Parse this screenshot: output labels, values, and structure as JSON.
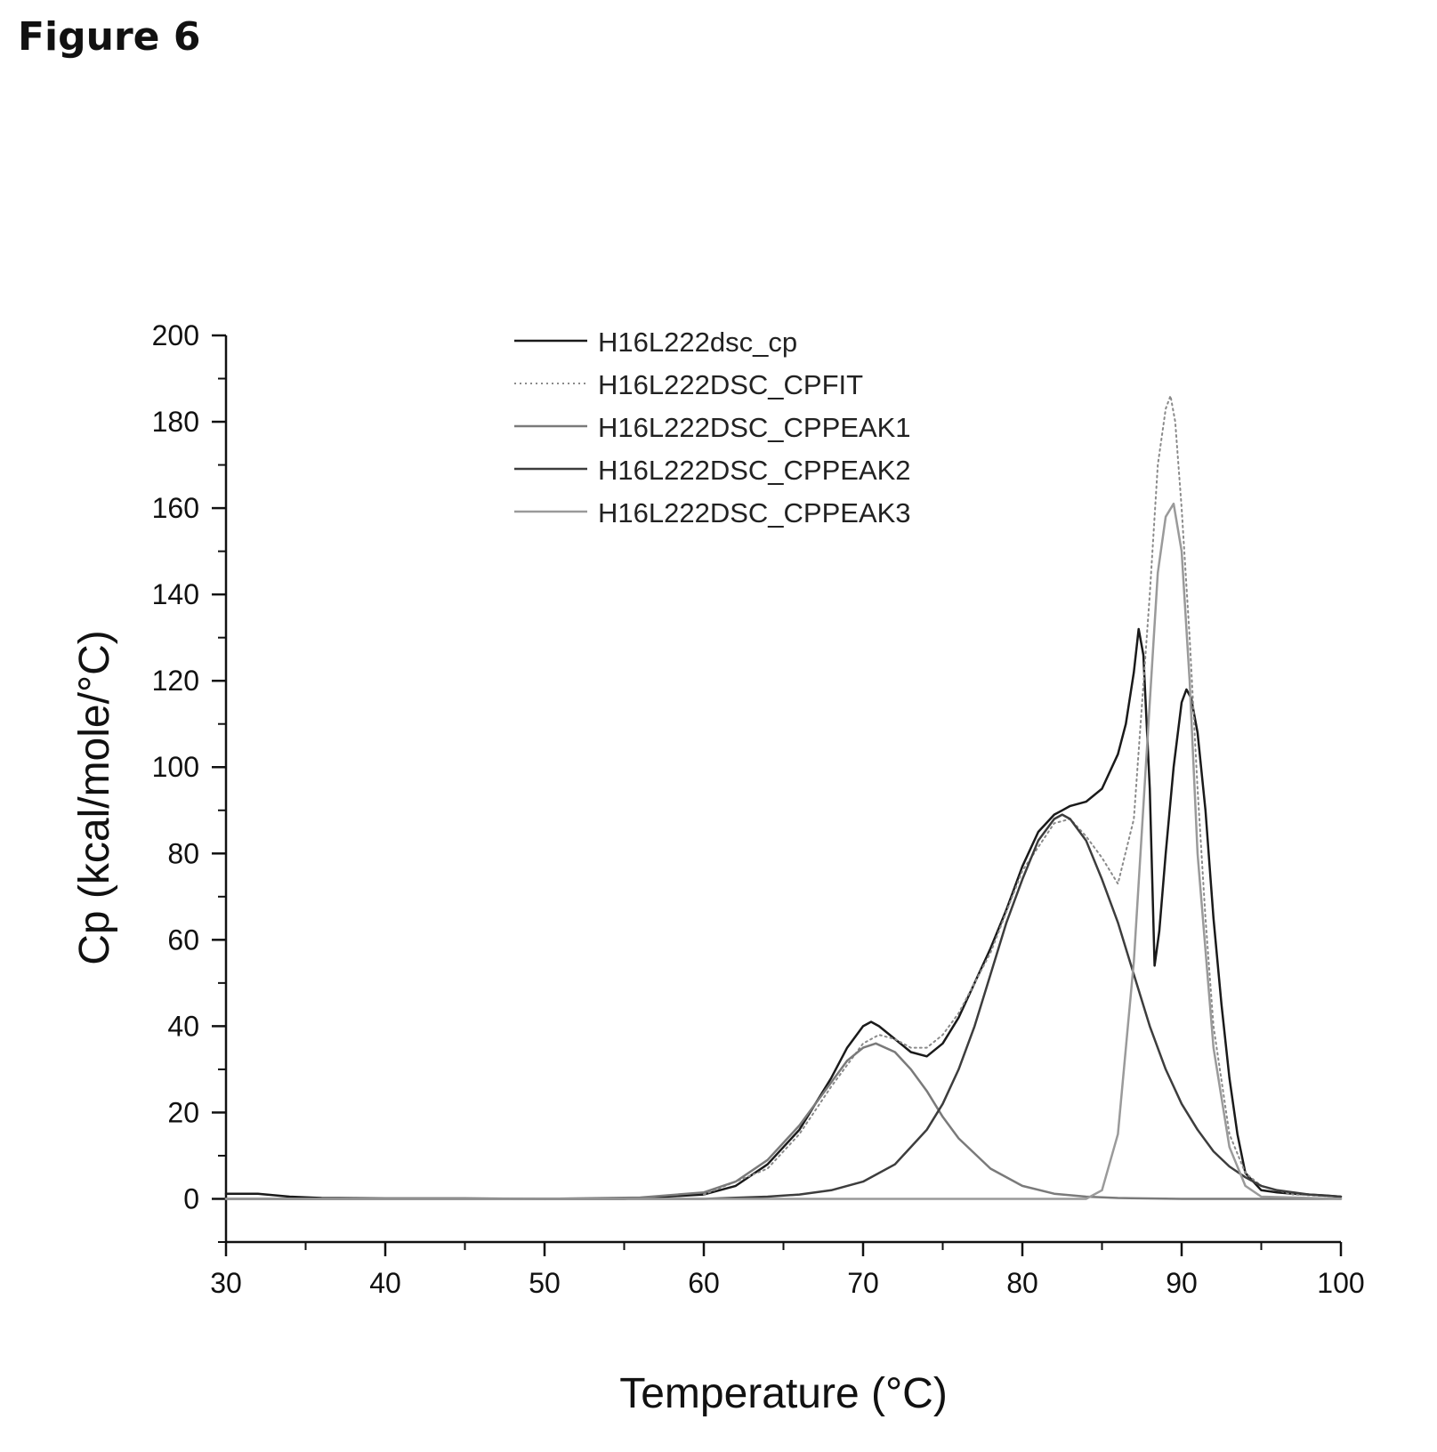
{
  "figure_title": "Figure 6",
  "chart_data": {
    "type": "line",
    "xlabel": "Temperature (°C)",
    "ylabel": "Cp (kcal/mole/°C)",
    "xlim": [
      30,
      100
    ],
    "ylim": [
      -10,
      200
    ],
    "xticks": [
      30,
      40,
      50,
      60,
      70,
      80,
      90,
      100
    ],
    "yticks": [
      0,
      20,
      40,
      60,
      80,
      100,
      120,
      140,
      160,
      180,
      200
    ],
    "grid": false,
    "legend_position": "top-center",
    "series": [
      {
        "name": "H16L222dsc_cp",
        "color": "#1a1a1a",
        "style": "solid",
        "x": [
          30,
          32,
          34,
          36,
          40,
          45,
          50,
          55,
          60,
          62,
          64,
          66,
          68,
          69,
          70,
          70.5,
          71,
          72,
          73,
          74,
          75,
          76,
          77,
          78,
          79,
          80,
          81,
          82,
          82.5,
          83,
          84,
          85,
          86,
          86.5,
          87,
          87.3,
          87.6,
          88,
          88.3,
          88.6,
          89,
          89.5,
          90,
          90.3,
          90.6,
          91,
          91.5,
          92,
          92.5,
          93,
          93.5,
          94,
          95,
          96,
          97,
          98,
          99,
          100
        ],
        "y": [
          1.2,
          1.2,
          0.5,
          0.2,
          0.1,
          0.1,
          0,
          0,
          1,
          3,
          8,
          16,
          28,
          35,
          40,
          41,
          40,
          37,
          34,
          33,
          36,
          42,
          50,
          58,
          67,
          77,
          85,
          89,
          90,
          91,
          92,
          95,
          103,
          110,
          122,
          132,
          126,
          95,
          54,
          62,
          80,
          100,
          115,
          118,
          116,
          108,
          90,
          65,
          45,
          28,
          15,
          6,
          2,
          1.5,
          1.2,
          1,
          0.8,
          0.5
        ]
      },
      {
        "name": "H16L222DSC_CPFIT",
        "color": "#8a8a8a",
        "style": "dotted",
        "x": [
          60,
          64,
          66,
          68,
          70,
          71,
          72,
          73,
          74,
          75,
          76,
          77,
          78,
          80,
          82,
          83,
          84,
          85,
          86,
          87,
          88,
          88.5,
          89,
          89.3,
          89.6,
          90,
          90.5,
          91,
          91.5,
          92,
          93,
          94,
          95,
          97,
          100
        ],
        "y": [
          1,
          7,
          15,
          26,
          36,
          38,
          37,
          35,
          35,
          38,
          43,
          50,
          57,
          76,
          87,
          88,
          84,
          79,
          73,
          88,
          140,
          170,
          183,
          186,
          180,
          160,
          130,
          95,
          65,
          40,
          15,
          6,
          3,
          1,
          0.5
        ]
      },
      {
        "name": "H16L222DSC_CPPEAK1",
        "color": "#7a7a7a",
        "style": "solid",
        "x": [
          30,
          50,
          56,
          60,
          62,
          64,
          66,
          68,
          69,
          70,
          70.8,
          72,
          73,
          74,
          75,
          76,
          78,
          80,
          82,
          84,
          86,
          90,
          100
        ],
        "y": [
          0,
          0,
          0.3,
          1.5,
          4,
          9,
          17,
          27,
          32,
          35,
          36,
          34,
          30,
          25,
          19,
          14,
          7,
          3,
          1.2,
          0.5,
          0.2,
          0,
          0
        ]
      },
      {
        "name": "H16L222DSC_CPPEAK2",
        "color": "#3d3d3d",
        "style": "solid",
        "x": [
          30,
          60,
          64,
          66,
          68,
          70,
          72,
          74,
          75,
          76,
          77,
          78,
          79,
          80,
          81,
          82,
          82.5,
          83,
          84,
          85,
          86,
          87,
          88,
          89,
          90,
          91,
          92,
          93,
          94,
          95,
          96,
          98,
          100
        ],
        "y": [
          0,
          0,
          0.5,
          1,
          2,
          4,
          8,
          16,
          22,
          30,
          40,
          52,
          64,
          74,
          83,
          88,
          89,
          88,
          83,
          74,
          64,
          52,
          40,
          30,
          22,
          16,
          11,
          7.5,
          5,
          3,
          2,
          1,
          0.5
        ]
      },
      {
        "name": "H16L222DSC_CPPEAK3",
        "color": "#9a9a9a",
        "style": "solid",
        "x": [
          30,
          84,
          85,
          86,
          87,
          88,
          88.5,
          89,
          89.5,
          90,
          90.5,
          91,
          92,
          93,
          94,
          95,
          100
        ],
        "y": [
          0,
          0,
          2,
          15,
          55,
          115,
          145,
          158,
          161,
          150,
          120,
          80,
          35,
          12,
          3,
          0.5,
          0
        ]
      }
    ]
  }
}
